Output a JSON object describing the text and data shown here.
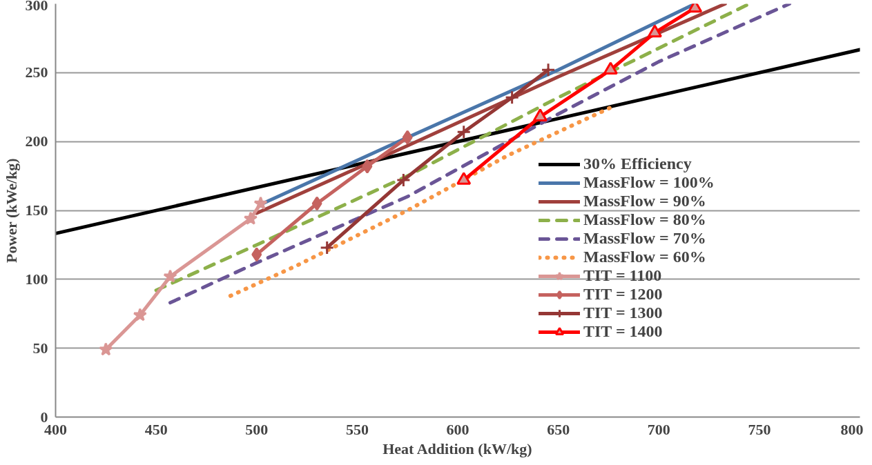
{
  "chart_data": {
    "type": "line",
    "xlabel": "Heat Addition (kW/kg)",
    "ylabel": "Power (kWe/kg)",
    "xlim": [
      400,
      800
    ],
    "xticks": [
      400,
      450,
      500,
      550,
      600,
      650,
      700,
      750,
      800
    ],
    "ylim": [
      0,
      300
    ],
    "yticks": [
      0,
      50,
      100,
      150,
      200,
      250,
      300
    ],
    "grid": "y",
    "legend": "right",
    "series": [
      {
        "name": "30% Efficiency",
        "color": "#000000",
        "line_style": "solid",
        "marker": "none",
        "x": [
          400,
          800
        ],
        "values": [
          133.3,
          266.7
        ]
      },
      {
        "name": "MassFlow = 100%",
        "color": "#4a76aa",
        "line_style": "solid",
        "marker": "none",
        "x": [
          503,
          575,
          650,
          718
        ],
        "values": [
          155,
          203,
          252,
          300
        ]
      },
      {
        "name": "MassFlow = 90%",
        "color": "#a0403c",
        "line_style": "solid",
        "marker": "none",
        "x": [
          500,
          575,
          650,
          733
        ],
        "values": [
          148,
          197,
          247,
          300
        ]
      },
      {
        "name": "MassFlow = 80%",
        "color": "#8db04a",
        "line_style": "dashed",
        "marker": "none",
        "x": [
          450,
          500,
          575,
          650,
          745
        ],
        "values": [
          92,
          125,
          175,
          232,
          300
        ]
      },
      {
        "name": "MassFlow = 70%",
        "color": "#6a5596",
        "line_style": "dashed",
        "marker": "none",
        "x": [
          457,
          500,
          575,
          650,
          700,
          765
        ],
        "values": [
          83,
          112,
          160,
          220,
          258,
          300
        ]
      },
      {
        "name": "MassFlow = 60%",
        "color": "#f79646",
        "line_style": "dotted",
        "marker": "none",
        "x": [
          487,
          520,
          575,
          625,
          678
        ],
        "values": [
          88,
          110,
          150,
          190,
          226
        ]
      },
      {
        "name": "TIT = 1100",
        "color": "#da9694",
        "line_style": "solid",
        "marker": "star",
        "x": [
          425,
          442,
          457,
          497,
          502
        ],
        "values": [
          49,
          74,
          102,
          144,
          155
        ]
      },
      {
        "name": "TIT = 1200",
        "color": "#c5625f",
        "line_style": "solid",
        "marker": "diamond",
        "x": [
          500,
          530,
          555,
          575
        ],
        "values": [
          118,
          155,
          182,
          203
        ]
      },
      {
        "name": "TIT = 1300",
        "color": "#953735",
        "line_style": "solid",
        "marker": "cross",
        "x": [
          535,
          573,
          603,
          627,
          645
        ],
        "values": [
          123,
          172,
          207,
          232,
          252
        ]
      },
      {
        "name": "TIT = 1400",
        "color": "#ff0000",
        "line_style": "solid",
        "marker": "triangle",
        "x": [
          603,
          641,
          676,
          698,
          718
        ],
        "values": [
          172,
          218,
          252,
          279,
          297
        ]
      }
    ]
  }
}
